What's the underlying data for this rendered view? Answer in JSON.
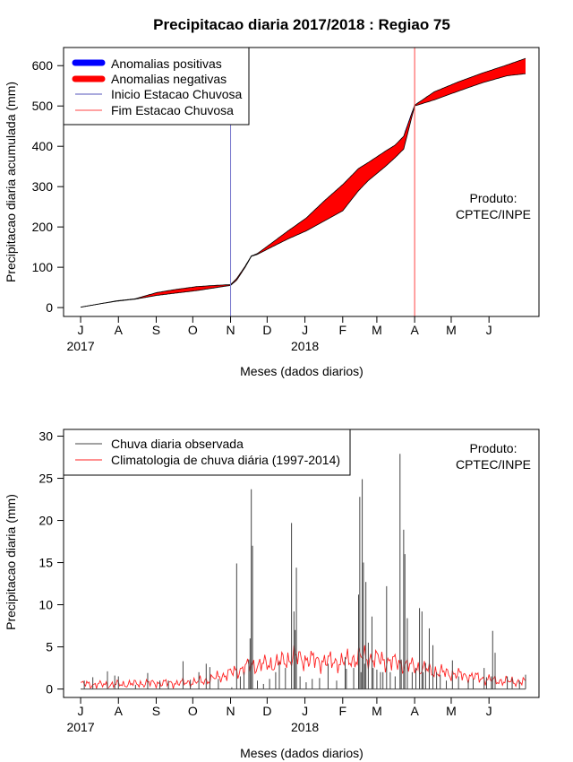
{
  "chart_data": [
    {
      "type": "area",
      "title": "Precipitacao diaria 2017/2018 : Regiao 75",
      "xlabel": "Meses (dados diarios)",
      "ylabel": "Precipitacao diaria acumulada (mm)",
      "x_ticks": [
        "J",
        "A",
        "S",
        "O",
        "N",
        "D",
        "J",
        "F",
        "M",
        "A",
        "M",
        "J"
      ],
      "year_labels": [
        "2017",
        "2018"
      ],
      "y_ticks": [
        0,
        100,
        200,
        300,
        400,
        500,
        600
      ],
      "ylim": [
        -22,
        645
      ],
      "xlim_days": [
        -14,
        376
      ],
      "legend": [
        "Anomalias positivas",
        "Anomalias negativas",
        "Inicio Estacao Chuvosa",
        "Fim Estacao Chuvosa"
      ],
      "annotation": [
        "Produto:",
        "CPTEC/INPE"
      ],
      "season_start_day": 123,
      "season_end_day": 274,
      "colors": {
        "positive": "#0000ff",
        "negative": "#ff0000",
        "start_line": "#7777cc",
        "end_line": "#ff4444"
      },
      "observed_anchors": [
        [
          0,
          1
        ],
        [
          15,
          9
        ],
        [
          30,
          16
        ],
        [
          45,
          21
        ],
        [
          62,
          30
        ],
        [
          78,
          36
        ],
        [
          95,
          42
        ],
        [
          110,
          49
        ],
        [
          123,
          55
        ],
        [
          128,
          68
        ],
        [
          135,
          100
        ],
        [
          140,
          127
        ],
        [
          145,
          132
        ],
        [
          158,
          152
        ],
        [
          170,
          170
        ],
        [
          185,
          190
        ],
        [
          200,
          215
        ],
        [
          215,
          240
        ],
        [
          228,
          290
        ],
        [
          236,
          315
        ],
        [
          250,
          350
        ],
        [
          258,
          372
        ],
        [
          265,
          393
        ],
        [
          274,
          500
        ],
        [
          290,
          515
        ],
        [
          310,
          537
        ],
        [
          330,
          558
        ],
        [
          350,
          575
        ],
        [
          365,
          580
        ]
      ],
      "climatology_anchors": [
        [
          0,
          1
        ],
        [
          15,
          9
        ],
        [
          30,
          17
        ],
        [
          45,
          22
        ],
        [
          62,
          37
        ],
        [
          78,
          45
        ],
        [
          95,
          52
        ],
        [
          110,
          55
        ],
        [
          123,
          57
        ],
        [
          128,
          72
        ],
        [
          135,
          103
        ],
        [
          140,
          128
        ],
        [
          145,
          134
        ],
        [
          158,
          163
        ],
        [
          170,
          190
        ],
        [
          185,
          222
        ],
        [
          200,
          265
        ],
        [
          215,
          305
        ],
        [
          228,
          345
        ],
        [
          236,
          360
        ],
        [
          250,
          388
        ],
        [
          258,
          403
        ],
        [
          265,
          425
        ],
        [
          274,
          502
        ],
        [
          290,
          535
        ],
        [
          310,
          560
        ],
        [
          330,
          582
        ],
        [
          350,
          602
        ],
        [
          365,
          618
        ]
      ]
    },
    {
      "type": "bar",
      "title": "",
      "xlabel": "Meses (dados diarios)",
      "ylabel": "Precipitacao diaria (mm)",
      "x_ticks": [
        "J",
        "A",
        "S",
        "O",
        "N",
        "D",
        "J",
        "F",
        "M",
        "A",
        "M",
        "J"
      ],
      "year_labels": [
        "2017",
        "2018"
      ],
      "y_ticks": [
        0,
        5,
        10,
        15,
        20,
        25,
        30
      ],
      "ylim": [
        -1,
        30.8
      ],
      "xlim_days": [
        -14,
        376
      ],
      "legend": [
        "Chuva diaria observada",
        "Climatologia de chuva diária (1997-2014)"
      ],
      "annotation": [
        "Produto:",
        "CPTEC/INPE"
      ],
      "colors": {
        "observed": "#444444",
        "climatology": "#ff2222"
      },
      "observed_spikes": [
        [
          3,
          1.0
        ],
        [
          10,
          1.4
        ],
        [
          22,
          2.1
        ],
        [
          28,
          1.6
        ],
        [
          31,
          1.5
        ],
        [
          45,
          0.5
        ],
        [
          55,
          1.9
        ],
        [
          65,
          1.0
        ],
        [
          72,
          1.0
        ],
        [
          84,
          3.3
        ],
        [
          90,
          1.1
        ],
        [
          97,
          2.0
        ],
        [
          103,
          3.0
        ],
        [
          106,
          2.6
        ],
        [
          113,
          1.2
        ],
        [
          124,
          0.2
        ],
        [
          128,
          14.9
        ],
        [
          131,
          1.5
        ],
        [
          134,
          2.0
        ],
        [
          138,
          3.5
        ],
        [
          139,
          6.0
        ],
        [
          140,
          23.7
        ],
        [
          141,
          17.0
        ],
        [
          145,
          1.0
        ],
        [
          150,
          0.6
        ],
        [
          155,
          1.2
        ],
        [
          160,
          2.0
        ],
        [
          163,
          3.2
        ],
        [
          168,
          2.5
        ],
        [
          173,
          19.7
        ],
        [
          175,
          9.2
        ],
        [
          176,
          7.0
        ],
        [
          177,
          14.4
        ],
        [
          180,
          1.5
        ],
        [
          185,
          0.8
        ],
        [
          190,
          1.2
        ],
        [
          196,
          1.3
        ],
        [
          203,
          3.0
        ],
        [
          210,
          1.0
        ],
        [
          217,
          3.8
        ],
        [
          218,
          2.4
        ],
        [
          224,
          2.5
        ],
        [
          228,
          11.2
        ],
        [
          229,
          22.8
        ],
        [
          230,
          2.0
        ],
        [
          231,
          24.9
        ],
        [
          232,
          15.0
        ],
        [
          233,
          3.0
        ],
        [
          234,
          12.7
        ],
        [
          236,
          5.5
        ],
        [
          239,
          8.6
        ],
        [
          240,
          2.5
        ],
        [
          243,
          2.3
        ],
        [
          246,
          2.0
        ],
        [
          248,
          2.0
        ],
        [
          251,
          12.2
        ],
        [
          254,
          2.0
        ],
        [
          258,
          1.5
        ],
        [
          262,
          27.9
        ],
        [
          263,
          3.5
        ],
        [
          265,
          18.9
        ],
        [
          266,
          16.0
        ],
        [
          268,
          8.4
        ],
        [
          272,
          2.0
        ],
        [
          275,
          2.5
        ],
        [
          278,
          9.6
        ],
        [
          280,
          9.2
        ],
        [
          281,
          2.0
        ],
        [
          283,
          3.1
        ],
        [
          286,
          7.2
        ],
        [
          289,
          5.2
        ],
        [
          292,
          2.0
        ],
        [
          295,
          1.7
        ],
        [
          300,
          1.0
        ],
        [
          305,
          3.4
        ],
        [
          310,
          1.5
        ],
        [
          318,
          1.0
        ],
        [
          322,
          1.2
        ],
        [
          331,
          2.5
        ],
        [
          333,
          1.4
        ],
        [
          337,
          1.5
        ],
        [
          338,
          6.9
        ],
        [
          340,
          4.3
        ],
        [
          350,
          1.5
        ],
        [
          354,
          1.3
        ],
        [
          360,
          1.0
        ],
        [
          365,
          1.7
        ]
      ],
      "climatology_profile": [
        [
          0,
          0.6
        ],
        [
          20,
          0.5
        ],
        [
          40,
          0.6
        ],
        [
          60,
          0.7
        ],
        [
          80,
          0.7
        ],
        [
          100,
          0.9
        ],
        [
          115,
          1.5
        ],
        [
          125,
          2.0
        ],
        [
          140,
          2.8
        ],
        [
          160,
          3.0
        ],
        [
          175,
          3.8
        ],
        [
          185,
          3.5
        ],
        [
          200,
          3.3
        ],
        [
          215,
          3.2
        ],
        [
          230,
          3.8
        ],
        [
          245,
          3.5
        ],
        [
          260,
          3.1
        ],
        [
          275,
          2.6
        ],
        [
          290,
          2.1
        ],
        [
          305,
          1.8
        ],
        [
          320,
          1.5
        ],
        [
          340,
          1.0
        ],
        [
          365,
          0.8
        ]
      ]
    }
  ]
}
